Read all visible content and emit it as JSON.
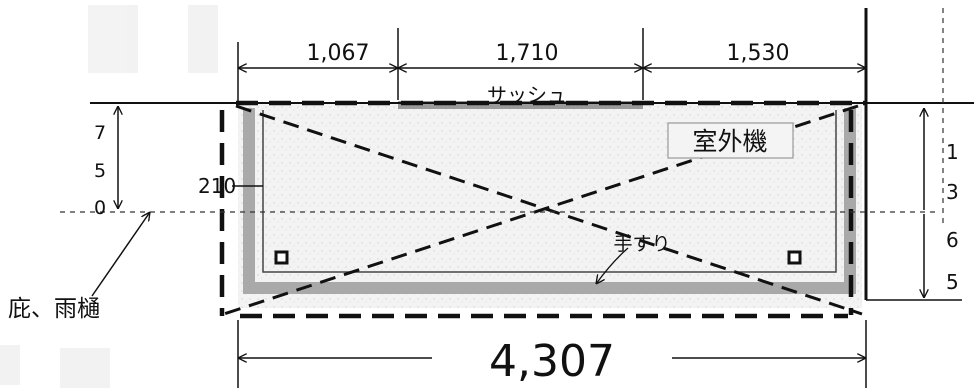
{
  "dimensions": {
    "top_left": "1,067",
    "top_middle": "1,710",
    "top_right": "1,530",
    "overall_width": "4,307",
    "inner_offset": "210"
  },
  "left_height_digits": [
    "7",
    "5",
    "0"
  ],
  "right_height_digits": [
    "1",
    "3",
    "6",
    "5"
  ],
  "labels": {
    "sash": "サッシュ",
    "outdoor_unit": "室外機",
    "handrail": "手すり",
    "eaves_gutter": "庇、雨樋"
  },
  "colors": {
    "line": "#111111",
    "balcony_fill": "#f1f1f1",
    "handrail_gray": "#a9a9a9",
    "sash_gray": "#9a9a9a"
  }
}
